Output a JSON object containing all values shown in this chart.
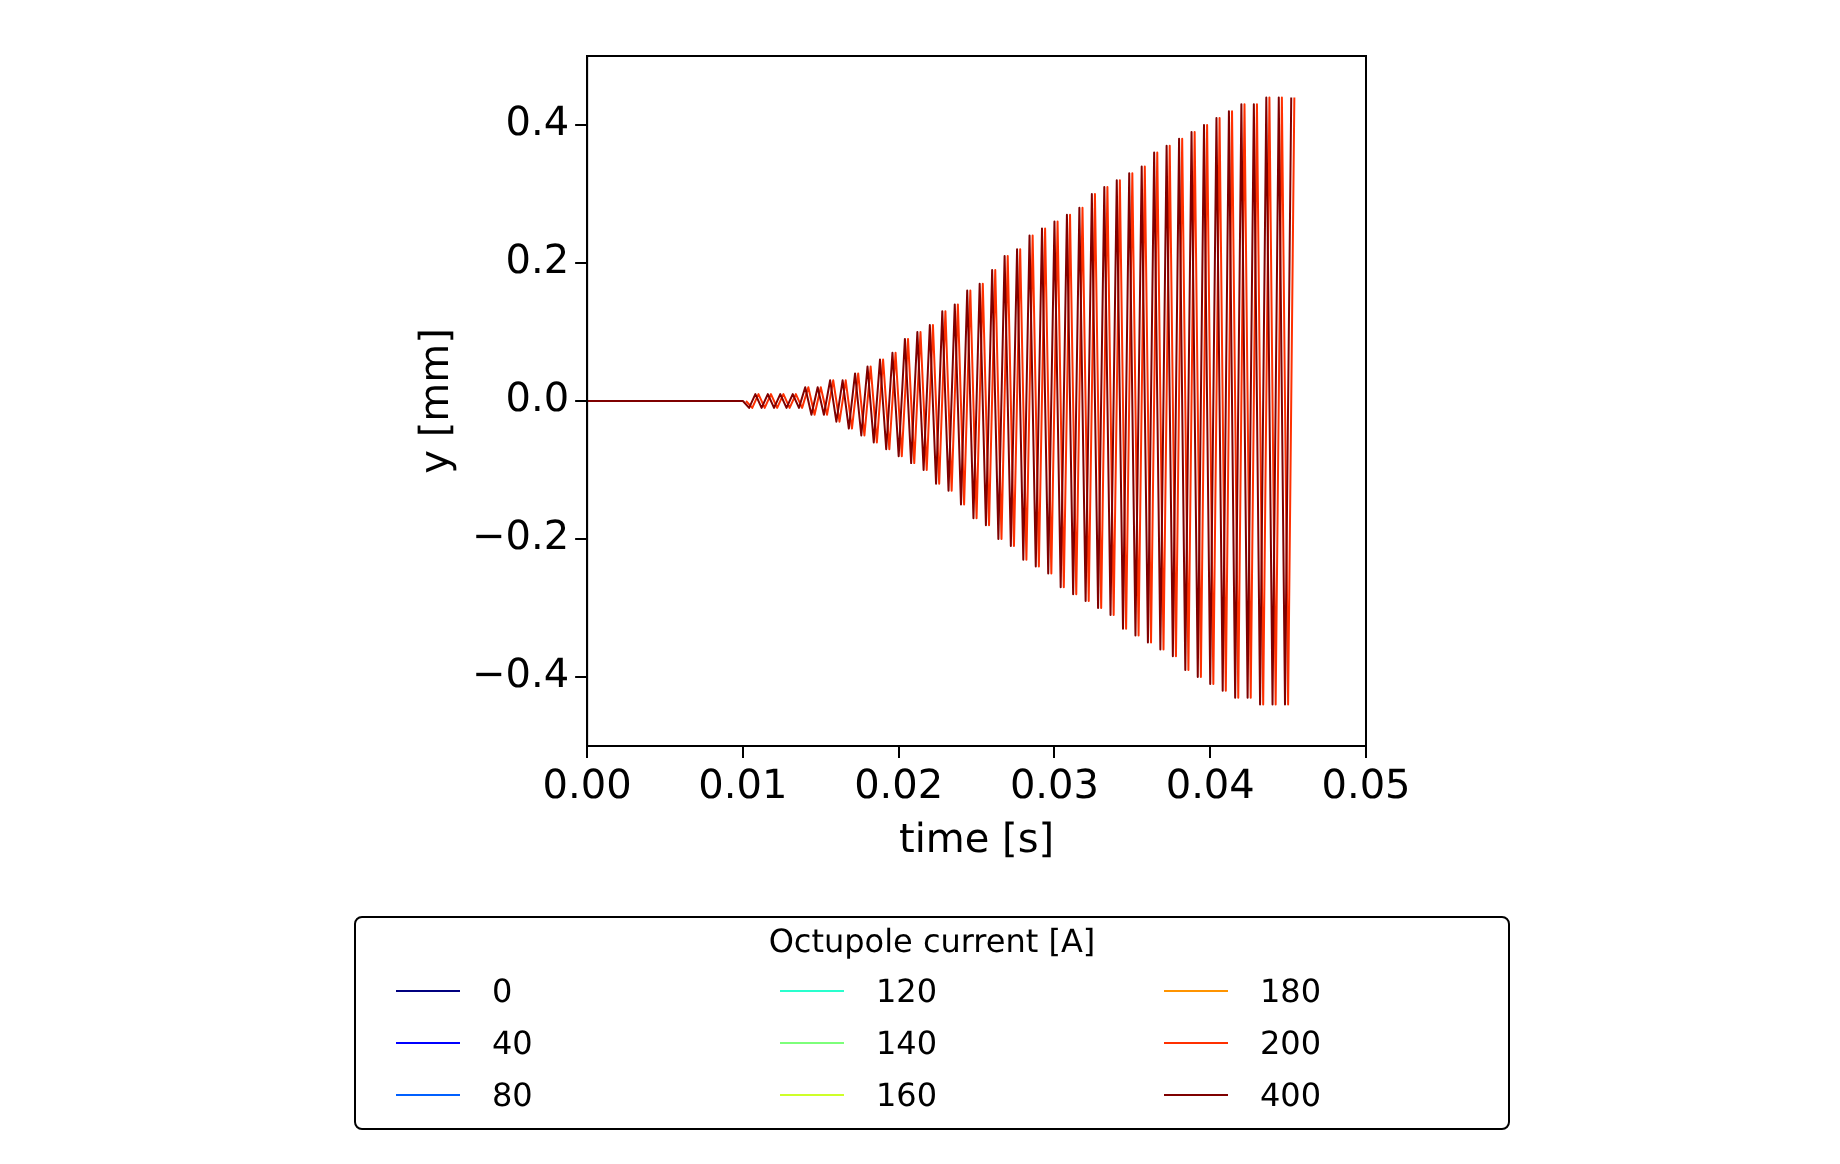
{
  "chart_data": {
    "type": "line",
    "xlabel": "time [s]",
    "ylabel": "y [mm]",
    "legend_title": "Octupole current [A]",
    "legend": "bottom",
    "grid": false,
    "marker": "none",
    "line_style": "solid",
    "xlim": [
      0,
      0.05
    ],
    "xticks": [
      {
        "value": 0,
        "label": "0.00"
      },
      {
        "value": 0.01,
        "label": "0.01"
      },
      {
        "value": 0.02,
        "label": "0.02"
      },
      {
        "value": 0.03,
        "label": "0.03"
      },
      {
        "value": 0.04,
        "label": "0.04"
      },
      {
        "value": 0.05,
        "label": "0.05"
      }
    ],
    "ylim": [
      -0.5,
      0.5
    ],
    "yticks": [
      {
        "value": -0.4,
        "label": "−0.4"
      },
      {
        "value": -0.2,
        "label": "−0.2"
      },
      {
        "value": 0,
        "label": "0.0"
      },
      {
        "value": 0.2,
        "label": "0.2"
      },
      {
        "value": 0.4,
        "label": "0.4"
      }
    ],
    "x": [
      0,
      0.002,
      0.004,
      0.006,
      0.008,
      0.01,
      0.0104,
      0.0108,
      0.0112,
      0.0116,
      0.012,
      0.0124,
      0.0128,
      0.0132,
      0.0136,
      0.014,
      0.0144,
      0.0148,
      0.0152,
      0.0156,
      0.016,
      0.0164,
      0.0168,
      0.0172,
      0.0176,
      0.018,
      0.0184,
      0.0188,
      0.0192,
      0.0196,
      0.02,
      0.0204,
      0.0208,
      0.0212,
      0.0216,
      0.022,
      0.0224,
      0.0228,
      0.0232,
      0.0236,
      0.024,
      0.0244,
      0.0248,
      0.0252,
      0.0256,
      0.026,
      0.0264,
      0.0268,
      0.0272,
      0.0276,
      0.028,
      0.0284,
      0.0288,
      0.0292,
      0.0296,
      0.03,
      0.0304,
      0.0308,
      0.0312,
      0.0316,
      0.032,
      0.0324,
      0.0328,
      0.0332,
      0.0336,
      0.034,
      0.0344,
      0.0348,
      0.0352,
      0.0356,
      0.036,
      0.0364,
      0.0368,
      0.0372,
      0.0376,
      0.038,
      0.0384,
      0.0388,
      0.0392,
      0.0396,
      0.04,
      0.0404,
      0.0408,
      0.0412,
      0.0416,
      0.042,
      0.0424,
      0.0428,
      0.0432,
      0.0436,
      0.044,
      0.0444,
      0.0448,
      0.0452
    ],
    "series": [
      {
        "name": "0",
        "color": "#00007f",
        "values": [
          null,
          null,
          null,
          null,
          null,
          null,
          null,
          null,
          null,
          null,
          null,
          null,
          null,
          null,
          null,
          null,
          null,
          null,
          null,
          null,
          null,
          null,
          null,
          null,
          null,
          null,
          null,
          null,
          null,
          null,
          null,
          null,
          null,
          null,
          null,
          null,
          null,
          null,
          null,
          null,
          null,
          null,
          null,
          null,
          null,
          null,
          null,
          null,
          null,
          null,
          null,
          null,
          null,
          null,
          null,
          null,
          null,
          null,
          null,
          null,
          null,
          null,
          null,
          null,
          null,
          null,
          null,
          null,
          null,
          null,
          null,
          null,
          null,
          null,
          null,
          null,
          null,
          null,
          null,
          null,
          null,
          null,
          null,
          null,
          null,
          null,
          null,
          null,
          null,
          null,
          null,
          null,
          null,
          null
        ]
      },
      {
        "name": "40",
        "color": "#0000ff",
        "values": [
          null,
          null,
          null,
          null,
          null,
          null,
          null,
          null,
          null,
          null,
          null,
          null,
          null,
          null,
          null,
          null,
          null,
          null,
          null,
          null,
          null,
          null,
          null,
          null,
          null,
          null,
          null,
          null,
          null,
          null,
          null,
          null,
          null,
          null,
          null,
          null,
          null,
          null,
          null,
          null,
          null,
          null,
          null,
          null,
          null,
          null,
          null,
          null,
          null,
          null,
          null,
          null,
          null,
          null,
          null,
          null,
          null,
          null,
          null,
          null,
          null,
          null,
          null,
          null,
          null,
          null,
          null,
          null,
          null,
          null,
          null,
          null,
          null,
          null,
          null,
          null,
          null,
          null,
          null,
          null,
          null,
          null,
          null,
          null,
          null,
          null,
          null,
          null,
          null,
          null,
          null,
          null,
          null,
          null
        ]
      },
      {
        "name": "80",
        "color": "#0060ff",
        "values": [
          null,
          null,
          null,
          null,
          null,
          null,
          null,
          null,
          null,
          null,
          null,
          null,
          null,
          null,
          null,
          null,
          null,
          null,
          null,
          null,
          null,
          null,
          null,
          null,
          null,
          null,
          null,
          null,
          null,
          null,
          null,
          null,
          null,
          null,
          null,
          null,
          null,
          null,
          null,
          null,
          null,
          null,
          null,
          null,
          null,
          null,
          null,
          null,
          null,
          null,
          null,
          null,
          null,
          null,
          null,
          null,
          null,
          null,
          null,
          null,
          null,
          null,
          null,
          null,
          null,
          null,
          null,
          null,
          null,
          null,
          null,
          null,
          null,
          null,
          null,
          null,
          null,
          null,
          null,
          null,
          null,
          null,
          null,
          null,
          null,
          null,
          null,
          null,
          null,
          null,
          null,
          null,
          null,
          null
        ]
      },
      {
        "name": "120",
        "color": "#29ffce",
        "values": [
          null,
          null,
          null,
          null,
          null,
          null,
          null,
          null,
          null,
          null,
          null,
          null,
          null,
          null,
          null,
          null,
          null,
          null,
          null,
          null,
          null,
          null,
          null,
          null,
          null,
          null,
          null,
          null,
          null,
          null,
          null,
          null,
          null,
          null,
          null,
          null,
          null,
          null,
          null,
          null,
          null,
          null,
          null,
          null,
          null,
          null,
          null,
          null,
          null,
          null,
          null,
          null,
          null,
          null,
          null,
          null,
          null,
          null,
          null,
          null,
          null,
          null,
          null,
          null,
          null,
          null,
          null,
          null,
          null,
          null,
          null,
          null,
          null,
          null,
          null,
          null,
          null,
          null,
          null,
          null,
          null,
          null,
          null,
          null,
          null,
          null,
          null,
          null,
          null,
          null,
          null,
          null,
          null,
          null
        ]
      },
      {
        "name": "140",
        "color": "#7dff7a",
        "values": [
          null,
          null,
          null,
          null,
          null,
          null,
          null,
          null,
          null,
          null,
          null,
          null,
          null,
          null,
          null,
          null,
          null,
          null,
          null,
          null,
          null,
          null,
          null,
          null,
          null,
          null,
          null,
          null,
          null,
          null,
          null,
          null,
          null,
          null,
          null,
          null,
          null,
          null,
          null,
          null,
          null,
          null,
          null,
          null,
          null,
          null,
          null,
          null,
          null,
          null,
          null,
          null,
          null,
          null,
          null,
          null,
          null,
          null,
          null,
          null,
          null,
          null,
          null,
          null,
          null,
          null,
          null,
          null,
          null,
          null,
          null,
          null,
          null,
          null,
          null,
          null,
          null,
          null,
          null,
          null,
          null,
          null,
          null,
          null,
          null,
          null,
          null,
          null,
          null,
          null,
          null,
          null,
          null,
          null
        ]
      },
      {
        "name": "160",
        "color": "#ceff29",
        "values": [
          null,
          null,
          null,
          null,
          null,
          null,
          null,
          null,
          null,
          null,
          null,
          null,
          null,
          null,
          null,
          null,
          null,
          null,
          null,
          null,
          null,
          null,
          null,
          null,
          null,
          null,
          null,
          null,
          null,
          null,
          null,
          null,
          null,
          null,
          null,
          null,
          null,
          null,
          null,
          null,
          null,
          null,
          null,
          null,
          null,
          null,
          null,
          null,
          null,
          null,
          null,
          null,
          null,
          null,
          null,
          null,
          null,
          null,
          null,
          null,
          null,
          null,
          null,
          null,
          null,
          null,
          null,
          null,
          null,
          null,
          null,
          null,
          null,
          null,
          null,
          null,
          null,
          null,
          null,
          null,
          null,
          null,
          null,
          null,
          null,
          null,
          null,
          null,
          null,
          null,
          null,
          null,
          null,
          null
        ]
      },
      {
        "name": "180",
        "color": "#ff9400",
        "values": [
          null,
          null,
          null,
          null,
          null,
          null,
          null,
          null,
          null,
          null,
          null,
          null,
          null,
          null,
          null,
          null,
          null,
          null,
          null,
          null,
          null,
          null,
          null,
          null,
          null,
          null,
          null,
          null,
          null,
          null,
          null,
          null,
          null,
          null,
          null,
          null,
          null,
          null,
          null,
          null,
          null,
          null,
          null,
          null,
          null,
          null,
          null,
          null,
          null,
          null,
          null,
          null,
          null,
          null,
          null,
          null,
          null,
          null,
          null,
          null,
          null,
          null,
          null,
          null,
          null,
          null,
          null,
          null,
          null,
          null,
          null,
          null,
          null,
          null,
          null,
          null,
          null,
          null,
          null,
          null,
          null,
          null,
          null,
          null,
          null,
          null,
          null,
          null,
          null,
          null,
          null,
          null,
          null,
          null
        ]
      },
      {
        "name": "200",
        "color": "#ff3000",
        "x": [
          0.0102,
          0.0106,
          0.011,
          0.0114,
          0.0118,
          0.0122,
          0.0126,
          0.013,
          0.0134,
          0.0138,
          0.0142,
          0.0146,
          0.015,
          0.0154,
          0.0158,
          0.0162,
          0.0166,
          0.017,
          0.0174,
          0.0178,
          0.0182,
          0.0186,
          0.019,
          0.0194,
          0.0198,
          0.0202,
          0.0206,
          0.021,
          0.0214,
          0.0218,
          0.0222,
          0.0226,
          0.023,
          0.0234,
          0.0238,
          0.0242,
          0.0246,
          0.025,
          0.0254,
          0.0258,
          0.0262,
          0.0266,
          0.027,
          0.0274,
          0.0278,
          0.0282,
          0.0286,
          0.029,
          0.0294,
          0.0298,
          0.0302,
          0.0306,
          0.031,
          0.0314,
          0.0318,
          0.0322,
          0.0326,
          0.033,
          0.0334,
          0.0338,
          0.0342,
          0.0346,
          0.035,
          0.0354,
          0.0358,
          0.0362,
          0.0366,
          0.037,
          0.0374,
          0.0378,
          0.0382,
          0.0386,
          0.039,
          0.0394,
          0.0398,
          0.0402,
          0.0406,
          0.041,
          0.0414,
          0.0418,
          0.0422,
          0.0426,
          0.043,
          0.0434,
          0.0438,
          0.0442,
          0.0446,
          0.045,
          0.0454
        ],
        "values": [
          0.0,
          -0.01,
          0.01,
          -0.01,
          0.01,
          -0.01,
          0.01,
          -0.01,
          0.01,
          -0.01,
          0.02,
          -0.02,
          0.02,
          -0.02,
          0.03,
          -0.03,
          0.03,
          -0.04,
          0.04,
          -0.05,
          0.05,
          -0.06,
          0.06,
          -0.07,
          0.07,
          -0.08,
          0.09,
          -0.09,
          0.1,
          -0.1,
          0.11,
          -0.12,
          0.13,
          -0.13,
          0.14,
          -0.15,
          0.16,
          -0.17,
          0.17,
          -0.18,
          0.19,
          -0.2,
          0.21,
          -0.21,
          0.22,
          -0.23,
          0.24,
          -0.24,
          0.25,
          -0.25,
          0.26,
          -0.27,
          0.27,
          -0.28,
          0.28,
          -0.29,
          0.3,
          -0.3,
          0.31,
          -0.31,
          0.32,
          -0.33,
          0.33,
          -0.34,
          0.34,
          -0.35,
          0.36,
          -0.36,
          0.37,
          -0.37,
          0.38,
          -0.39,
          0.39,
          -0.4,
          0.4,
          -0.41,
          0.41,
          -0.42,
          0.42,
          -0.43,
          0.43,
          -0.43,
          0.43,
          -0.44,
          0.44,
          -0.44,
          0.44,
          -0.44,
          0.44
        ]
      },
      {
        "name": "400",
        "color": "#7f0000",
        "values": [
          0,
          0,
          0,
          0,
          0,
          0.0,
          -0.01,
          0.01,
          -0.01,
          0.01,
          -0.01,
          0.01,
          -0.01,
          0.01,
          -0.01,
          0.02,
          -0.02,
          0.02,
          -0.02,
          0.03,
          -0.03,
          0.03,
          -0.04,
          0.04,
          -0.05,
          0.05,
          -0.06,
          0.06,
          -0.07,
          0.07,
          -0.08,
          0.09,
          -0.09,
          0.1,
          -0.1,
          0.11,
          -0.12,
          0.13,
          -0.13,
          0.14,
          -0.15,
          0.16,
          -0.17,
          0.17,
          -0.18,
          0.19,
          -0.2,
          0.21,
          -0.21,
          0.22,
          -0.23,
          0.24,
          -0.24,
          0.25,
          -0.25,
          0.26,
          -0.27,
          0.27,
          -0.28,
          0.28,
          -0.29,
          0.3,
          -0.3,
          0.31,
          -0.31,
          0.32,
          -0.33,
          0.33,
          -0.34,
          0.34,
          -0.35,
          0.36,
          -0.36,
          0.37,
          -0.37,
          0.38,
          -0.39,
          0.39,
          -0.4,
          0.4,
          -0.41,
          0.41,
          -0.42,
          0.42,
          -0.43,
          0.43,
          -0.43,
          0.43,
          -0.44,
          0.44,
          -0.44,
          0.44,
          -0.44,
          0.44
        ]
      }
    ]
  }
}
